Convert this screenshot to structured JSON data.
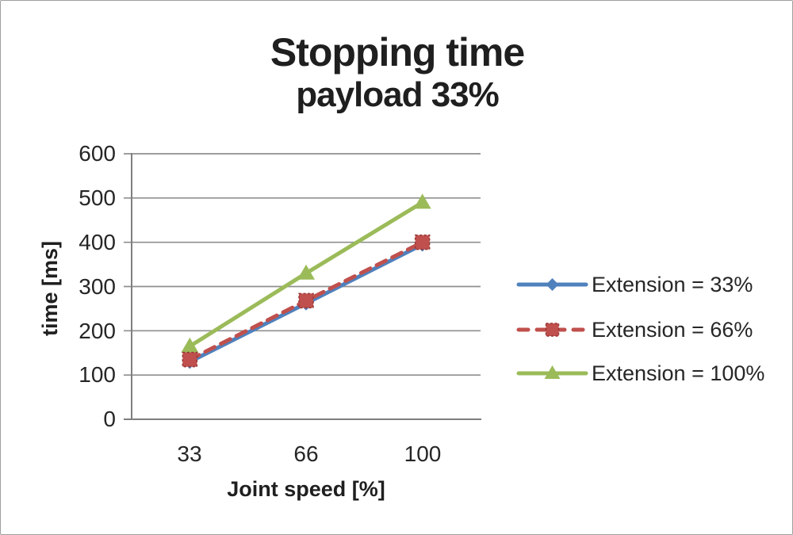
{
  "canvas": {
    "background": "#ffffff",
    "border_color": "#9f9f9f",
    "text_color": "#262626"
  },
  "chart_data": {
    "type": "line",
    "title": "Stopping time",
    "subtitle": "payload 33%",
    "xlabel": "Joint speed [%]",
    "ylabel": "time [ms]",
    "categories": [
      "33",
      "66",
      "100"
    ],
    "y_axis": {
      "min": 0,
      "max": 600,
      "step": 100,
      "tick_labels": [
        "600",
        "500",
        "400",
        "300",
        "200",
        "100",
        "0"
      ]
    },
    "grid": true,
    "legend_position": "right",
    "axis_color": "#7f7f7f",
    "grid_color": "#8f8f8f",
    "series": [
      {
        "name": "Extension = 33%",
        "color": "#4F81BD",
        "marker": "diamond",
        "dash": false,
        "values": [
          130,
          262,
          395
        ]
      },
      {
        "name": "Extension = 66%",
        "color": "#C0504D",
        "marker": "square",
        "marker_edge": "#963634",
        "dash": true,
        "values": [
          135,
          268,
          400
        ]
      },
      {
        "name": "Extension = 100%",
        "color": "#9BBB59",
        "marker": "triangle",
        "dash": false,
        "values": [
          165,
          330,
          490
        ]
      }
    ]
  }
}
